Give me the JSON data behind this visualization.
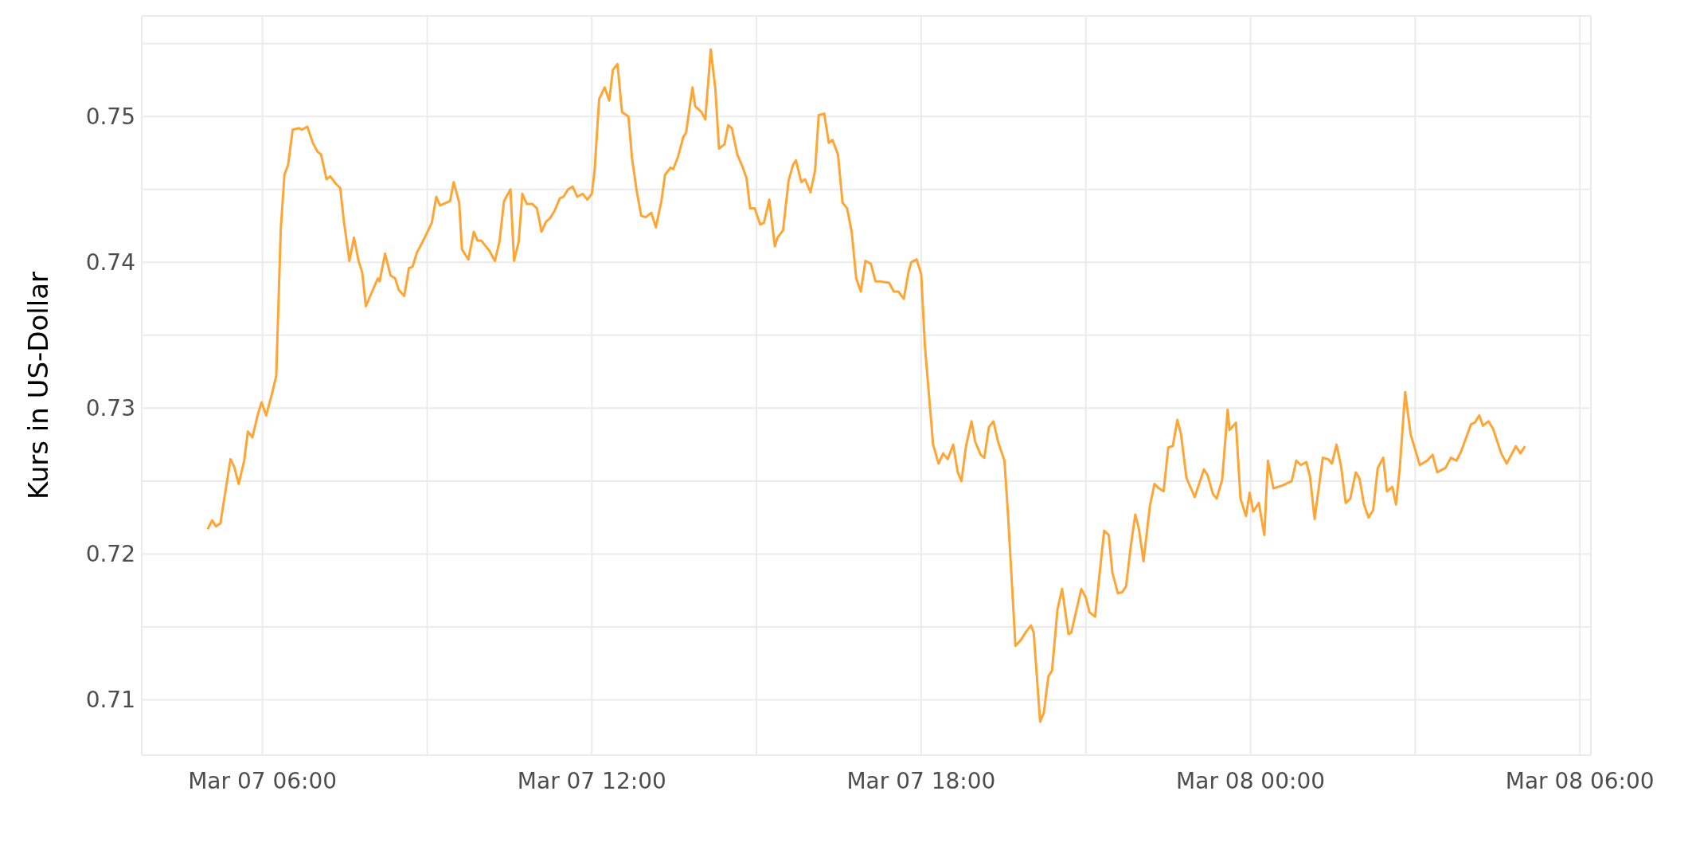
{
  "chart_data": {
    "type": "line",
    "ylabel": "Kurs in US-Dollar",
    "x": [
      "--03-07T05:00",
      "--03-07T05:05",
      "--03-07T05:09",
      "--03-07T05:14",
      "--03-07T05:25",
      "--03-07T05:29",
      "--03-07T05:34",
      "--03-07T05:40",
      "--03-07T05:44",
      "--03-07T05:49",
      "--03-07T05:55",
      "--03-07T05:59",
      "--03-07T06:04",
      "--03-07T06:10",
      "--03-07T06:15",
      "--03-07T06:20",
      "--03-07T06:24",
      "--03-07T06:28",
      "--03-07T06:33",
      "--03-07T06:40",
      "--03-07T06:43",
      "--03-07T06:49",
      "--03-07T06:55",
      "--03-07T07:00",
      "--03-07T07:04",
      "--03-07T07:10",
      "--03-07T07:14",
      "--03-07T07:20",
      "--03-07T07:25",
      "--03-07T07:29",
      "--03-07T07:35",
      "--03-07T07:40",
      "--03-07T07:45",
      "--03-07T07:49",
      "--03-07T07:53",
      "--03-07T08:06",
      "--03-07T08:08",
      "--03-07T08:14",
      "--03-07T08:20",
      "--03-07T08:25",
      "--03-07T08:29",
      "--03-07T08:35",
      "--03-07T08:40",
      "--03-07T08:44",
      "--03-07T08:49",
      "--03-07T08:55",
      "--03-07T09:05",
      "--03-07T09:10",
      "--03-07T09:14",
      "--03-07T09:25",
      "--03-07T09:29",
      "--03-07T09:35",
      "--03-07T09:38",
      "--03-07T09:45",
      "--03-07T09:51",
      "--03-07T09:55",
      "--03-07T09:59",
      "--03-07T10:08",
      "--03-07T10:14",
      "--03-07T10:19",
      "--03-07T10:24",
      "--03-07T10:31",
      "--03-07T10:35",
      "--03-07T10:40",
      "--03-07T10:44",
      "--03-07T10:49",
      "--03-07T10:55",
      "--03-07T11:00",
      "--03-07T11:05",
      "--03-07T11:10",
      "--03-07T11:14",
      "--03-07T11:19",
      "--03-07T11:25",
      "--03-07T11:29",
      "--03-07T11:34",
      "--03-07T11:39",
      "--03-07T11:44",
      "--03-07T11:50",
      "--03-07T11:55",
      "--03-07T12:00",
      "--03-07T12:03",
      "--03-07T12:08",
      "--03-07T12:14",
      "--03-07T12:19",
      "--03-07T12:23",
      "--03-07T12:28",
      "--03-07T12:33",
      "--03-07T12:40",
      "--03-07T12:44",
      "--03-07T12:49",
      "--03-07T12:54",
      "--03-07T12:59",
      "--03-07T13:05",
      "--03-07T13:10",
      "--03-07T13:16",
      "--03-07T13:20",
      "--03-07T13:26",
      "--03-07T13:29",
      "--03-07T13:34",
      "--03-07T13:40",
      "--03-07T13:43",
      "--03-07T13:50",
      "--03-07T13:53",
      "--03-07T14:00",
      "--03-07T14:04",
      "--03-07T14:10",
      "--03-07T14:15",
      "--03-07T14:19",
      "--03-07T14:25",
      "--03-07T14:29",
      "--03-07T14:33",
      "--03-07T14:39",
      "--03-07T14:45",
      "--03-07T14:49",
      "--03-07T14:53",
      "--03-07T14:58",
      "--03-07T15:04",
      "--03-07T15:08",
      "--03-07T15:14",
      "--03-07T15:20",
      "--03-07T15:23",
      "--03-07T15:29",
      "--03-07T15:35",
      "--03-07T15:40",
      "--03-07T15:43",
      "--03-07T15:49",
      "--03-07T15:53",
      "--03-07T15:59",
      "--03-07T16:04",
      "--03-07T16:08",
      "--03-07T16:14",
      "--03-07T16:19",
      "--03-07T16:23",
      "--03-07T16:29",
      "--03-07T16:34",
      "--03-07T16:39",
      "--03-07T16:44",
      "--03-07T16:49",
      "--03-07T16:54",
      "--03-07T16:59",
      "--03-07T17:05",
      "--03-07T17:10",
      "--03-07T17:14",
      "--03-07T17:25",
      "--03-07T17:30",
      "--03-07T17:35",
      "--03-07T17:41",
      "--03-07T17:46",
      "--03-07T17:49",
      "--03-07T17:55",
      "--03-07T18:00",
      "--03-07T18:04",
      "--03-07T18:13",
      "--03-07T18:19",
      "--03-07T18:24",
      "--03-07T18:29",
      "--03-07T18:35",
      "--03-07T18:40",
      "--03-07T18:44",
      "--03-07T18:49",
      "--03-07T18:55",
      "--03-07T18:59",
      "--03-07T19:05",
      "--03-07T19:09",
      "--03-07T19:14",
      "--03-07T19:19",
      "--03-07T19:24",
      "--03-07T19:31",
      "--03-07T19:35",
      "--03-07T19:43",
      "--03-07T19:49",
      "--03-07T19:55",
      "--03-07T20:00",
      "--03-07T20:03",
      "--03-07T20:10",
      "--03-07T20:14",
      "--03-07T20:19",
      "--03-07T20:23",
      "--03-07T20:29",
      "--03-07T20:34",
      "--03-07T20:41",
      "--03-07T20:44",
      "--03-07T20:55",
      "--03-07T21:00",
      "--03-07T21:04",
      "--03-07T21:10",
      "--03-07T21:20",
      "--03-07T21:25",
      "--03-07T21:29",
      "--03-07T21:35",
      "--03-07T21:40",
      "--03-07T21:44",
      "--03-07T21:49",
      "--03-07T21:54",
      "--03-07T21:58",
      "--03-07T22:03",
      "--03-07T22:10",
      "--03-07T22:15",
      "--03-07T22:20",
      "--03-07T22:25",
      "--03-07T22:30",
      "--03-07T22:35",
      "--03-07T22:40",
      "--03-07T22:44",
      "--03-07T22:50",
      "--03-07T22:59",
      "--03-07T23:09",
      "--03-07T23:13",
      "--03-07T23:19",
      "--03-07T23:23",
      "--03-07T23:29",
      "--03-07T23:35",
      "--03-07T23:37",
      "--03-07T23:44",
      "--03-07T23:49",
      "--03-07T23:55",
      "--03-07T23:59",
      "--03-08T00:03",
      "--03-08T00:09",
      "--03-08T00:15",
      "--03-08T00:19",
      "--03-08T00:25",
      "--03-08T00:35",
      "--03-08T00:45",
      "--03-08T00:50",
      "--03-08T00:55",
      "--03-08T01:01",
      "--03-08T01:05",
      "--03-08T01:10",
      "--03-08T01:19",
      "--03-08T01:25",
      "--03-08T01:29",
      "--03-08T01:34",
      "--03-08T01:39",
      "--03-08T01:44",
      "--03-08T01:49",
      "--03-08T01:55",
      "--03-08T01:59",
      "--03-08T02:04",
      "--03-08T02:09",
      "--03-08T02:14",
      "--03-08T02:19",
      "--03-08T02:25",
      "--03-08T02:29",
      "--03-08T02:35",
      "--03-08T02:39",
      "--03-08T02:43",
      "--03-08T02:49",
      "--03-08T02:55",
      "--03-08T03:05",
      "--03-08T03:13",
      "--03-08T03:19",
      "--03-08T03:24",
      "--03-08T03:33",
      "--03-08T03:39",
      "--03-08T03:45",
      "--03-08T03:50",
      "--03-08T04:01",
      "--03-08T04:05",
      "--03-08T04:10",
      "--03-08T04:14",
      "--03-08T04:20",
      "--03-08T04:25",
      "--03-08T04:34",
      "--03-08T04:40",
      "--03-08T04:50",
      "--03-08T04:55",
      "--03-08T05:00"
    ],
    "values": [
      0.7217,
      0.7223,
      0.7219,
      0.7221,
      0.7265,
      0.726,
      0.7248,
      0.7264,
      0.7284,
      0.728,
      0.7296,
      0.7304,
      0.7295,
      0.7309,
      0.7322,
      0.7423,
      0.746,
      0.7467,
      0.7491,
      0.7492,
      0.7491,
      0.7493,
      0.7482,
      0.7476,
      0.7474,
      0.7457,
      0.7459,
      0.7454,
      0.7451,
      0.7428,
      0.7401,
      0.7417,
      0.7401,
      0.7393,
      0.737,
      0.7389,
      0.7387,
      0.7406,
      0.7391,
      0.7389,
      0.7381,
      0.7377,
      0.7396,
      0.7397,
      0.7407,
      0.7414,
      0.7427,
      0.7445,
      0.7439,
      0.7442,
      0.7455,
      0.7441,
      0.7409,
      0.7402,
      0.7421,
      0.7415,
      0.7415,
      0.7408,
      0.7401,
      0.7414,
      0.7442,
      0.745,
      0.7401,
      0.7414,
      0.7447,
      0.744,
      0.744,
      0.7437,
      0.7421,
      0.7428,
      0.743,
      0.7435,
      0.7444,
      0.7445,
      0.745,
      0.7452,
      0.7445,
      0.7447,
      0.7443,
      0.7447,
      0.7463,
      0.7512,
      0.752,
      0.7511,
      0.7532,
      0.7536,
      0.7503,
      0.75,
      0.7471,
      0.7449,
      0.7432,
      0.7431,
      0.7434,
      0.7424,
      0.7442,
      0.746,
      0.7465,
      0.7464,
      0.7472,
      0.7486,
      0.7489,
      0.752,
      0.7507,
      0.7503,
      0.7498,
      0.7546,
      0.7519,
      0.7478,
      0.7481,
      0.7494,
      0.7492,
      0.7474,
      0.7465,
      0.7458,
      0.7437,
      0.7437,
      0.7426,
      0.7427,
      0.7443,
      0.7411,
      0.7417,
      0.7422,
      0.7456,
      0.7467,
      0.747,
      0.7455,
      0.7457,
      0.7448,
      0.7463,
      0.7501,
      0.7502,
      0.7482,
      0.7484,
      0.7474,
      0.7441,
      0.7437,
      0.7421,
      0.7389,
      0.738,
      0.7401,
      0.7399,
      0.7387,
      0.7387,
      0.7386,
      0.738,
      0.738,
      0.7375,
      0.7393,
      0.74,
      0.7402,
      0.7392,
      0.7343,
      0.7275,
      0.7262,
      0.7269,
      0.7265,
      0.7275,
      0.7256,
      0.725,
      0.7274,
      0.7291,
      0.7277,
      0.7268,
      0.7266,
      0.7287,
      0.7291,
      0.7277,
      0.7264,
      0.7226,
      0.7137,
      0.7141,
      0.7147,
      0.7151,
      0.7146,
      0.7085,
      0.7091,
      0.7116,
      0.712,
      0.7162,
      0.7176,
      0.7145,
      0.7146,
      0.7176,
      0.717,
      0.716,
      0.7157,
      0.7216,
      0.7213,
      0.7187,
      0.7173,
      0.7174,
      0.7178,
      0.7205,
      0.7227,
      0.7217,
      0.7195,
      0.7233,
      0.7248,
      0.7245,
      0.7243,
      0.7273,
      0.7274,
      0.7292,
      0.7282,
      0.7252,
      0.7239,
      0.7258,
      0.7254,
      0.7241,
      0.7238,
      0.7251,
      0.7299,
      0.7285,
      0.729,
      0.7238,
      0.7226,
      0.7242,
      0.7229,
      0.7235,
      0.7213,
      0.7264,
      0.7245,
      0.7247,
      0.725,
      0.7264,
      0.7261,
      0.7263,
      0.7253,
      0.7224,
      0.7266,
      0.7265,
      0.7262,
      0.7275,
      0.726,
      0.7235,
      0.7238,
      0.7256,
      0.7252,
      0.7234,
      0.7225,
      0.723,
      0.7259,
      0.7266,
      0.7243,
      0.7246,
      0.7234,
      0.7258,
      0.7311,
      0.7282,
      0.7261,
      0.7264,
      0.7268,
      0.7256,
      0.7259,
      0.7266,
      0.7264,
      0.727,
      0.7289,
      0.729,
      0.7295,
      0.7288,
      0.7291,
      0.7286,
      0.7269,
      0.7262,
      0.7274,
      0.7269,
      0.7274
    ],
    "color": "#ffa534",
    "marker": "none",
    "line_style": "solid",
    "xlim": [
      "--03-07T03:48",
      "--03-08T06:12"
    ],
    "ylim": [
      0.7062,
      0.7569
    ],
    "xticks": [
      {
        "value": "--03-07T06:00",
        "label": "Mar 07 06:00"
      },
      {
        "value": "--03-07T09:00",
        "label": null
      },
      {
        "value": "--03-07T12:00",
        "label": "Mar 07 12:00"
      },
      {
        "value": "--03-07T15:00",
        "label": null
      },
      {
        "value": "--03-07T18:00",
        "label": "Mar 07 18:00"
      },
      {
        "value": "--03-07T21:00",
        "label": null
      },
      {
        "value": "--03-08T00:00",
        "label": "Mar 08 00:00"
      },
      {
        "value": "--03-08T03:00",
        "label": null
      },
      {
        "value": "--03-08T06:00",
        "label": "Mar 08 06:00"
      }
    ],
    "yticks": [
      {
        "value": 0.71,
        "label": "0.71"
      },
      {
        "value": 0.715,
        "label": null
      },
      {
        "value": 0.72,
        "label": "0.72"
      },
      {
        "value": 0.725,
        "label": null
      },
      {
        "value": 0.73,
        "label": "0.73"
      },
      {
        "value": 0.735,
        "label": null
      },
      {
        "value": 0.74,
        "label": "0.74"
      },
      {
        "value": 0.745,
        "label": null
      },
      {
        "value": 0.75,
        "label": "0.75"
      },
      {
        "value": 0.755,
        "label": null
      }
    ],
    "grid": true
  }
}
